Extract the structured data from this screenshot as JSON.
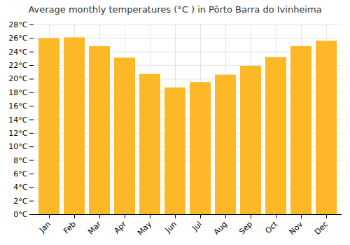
{
  "chart_data": {
    "type": "bar",
    "title": "Average monthly temperatures (°C ) in Pôrto Barra do Ivinheima",
    "categories": [
      "Jan",
      "Feb",
      "Mar",
      "Apr",
      "May",
      "Jun",
      "Jul",
      "Aug",
      "Sep",
      "Oct",
      "Nov",
      "Dec"
    ],
    "values": [
      26.0,
      26.1,
      24.8,
      23.1,
      20.7,
      18.7,
      19.5,
      20.6,
      21.9,
      23.2,
      24.8,
      25.6
    ],
    "color": "#FDB827",
    "ylim": [
      0,
      28
    ],
    "yticks": [
      {
        "value": 0,
        "label": "0°C"
      },
      {
        "value": 2,
        "label": "2°C"
      },
      {
        "value": 4,
        "label": "4°C"
      },
      {
        "value": 6,
        "label": "6°C"
      },
      {
        "value": 8,
        "label": "8°C"
      },
      {
        "value": 10,
        "label": "10°C"
      },
      {
        "value": 12,
        "label": "12°C"
      },
      {
        "value": 14,
        "label": "14°C"
      },
      {
        "value": 16,
        "label": "16°C"
      },
      {
        "value": 18,
        "label": "18°C"
      },
      {
        "value": 20,
        "label": "20°C"
      },
      {
        "value": 22,
        "label": "22°C"
      },
      {
        "value": 24,
        "label": "24°C"
      },
      {
        "value": 26,
        "label": "26°C"
      },
      {
        "value": 28,
        "label": "28°C"
      }
    ],
    "grid": true
  }
}
